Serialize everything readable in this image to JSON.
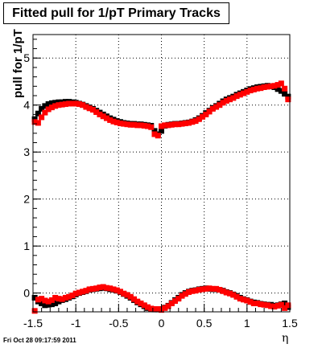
{
  "header": {
    "title": "Fitted pull for 1/pT  Primary Tracks",
    "timestamp": "Fri Oct 28 09:17:59 2011"
  },
  "chart_data": {
    "type": "scatter",
    "title": "Fitted pull for 1/pT  Primary Tracks",
    "xlabel": "η",
    "ylabel": "pull for 1/pT",
    "xlim": [
      -1.5,
      1.5
    ],
    "ylim": [
      -0.4,
      5.5
    ],
    "xticks": [
      "-1.5",
      "-1",
      "-0.5",
      "0",
      "0.5",
      "1",
      "1.5"
    ],
    "yticks": [
      "0",
      "1",
      "2",
      "3",
      "4",
      "5"
    ],
    "grid": true,
    "colors": {
      "black_series": "#000000",
      "red_series": "#ff0000"
    },
    "series": [
      {
        "marker": "square",
        "color": "#000000",
        "x": [
          -1.48,
          -1.44,
          -1.4,
          -1.36,
          -1.32,
          -1.28,
          -1.24,
          -1.2,
          -1.16,
          -1.12,
          -1.08,
          -1.04,
          -1.0,
          -0.96,
          -0.92,
          -0.88,
          -0.84,
          -0.8,
          -0.76,
          -0.72,
          -0.68,
          -0.64,
          -0.6,
          -0.56,
          -0.52,
          -0.48,
          -0.44,
          -0.4,
          -0.36,
          -0.32,
          -0.28,
          -0.24,
          -0.2,
          -0.16,
          -0.12,
          -0.08,
          -0.04,
          0.0,
          0.04,
          0.08,
          0.12,
          0.16,
          0.2,
          0.24,
          0.28,
          0.32,
          0.36,
          0.4,
          0.44,
          0.48,
          0.52,
          0.56,
          0.6,
          0.64,
          0.68,
          0.72,
          0.76,
          0.8,
          0.84,
          0.88,
          0.92,
          0.96,
          1.0,
          1.04,
          1.08,
          1.12,
          1.16,
          1.2,
          1.24,
          1.28,
          1.32,
          1.36,
          1.4,
          1.44,
          1.48,
          -1.48,
          -1.44,
          -1.4,
          -1.36,
          -1.32,
          -1.28,
          -1.24,
          -1.2,
          -1.16,
          -1.12,
          -1.08,
          -1.04,
          -1.0,
          -0.96,
          -0.92,
          -0.88,
          -0.84,
          -0.8,
          -0.76,
          -0.72,
          -0.68,
          -0.64,
          -0.6,
          -0.56,
          -0.52,
          -0.48,
          -0.44,
          -0.4,
          -0.36,
          -0.32,
          -0.28,
          -0.24,
          -0.2,
          -0.16,
          -0.12,
          -0.08,
          -0.04,
          0.0,
          0.04,
          0.08,
          0.12,
          0.16,
          0.2,
          0.24,
          0.28,
          0.32,
          0.36,
          0.4,
          0.44,
          0.48,
          0.52,
          0.56,
          0.6,
          0.64,
          0.68,
          0.72,
          0.76,
          0.8,
          0.84,
          0.88,
          0.92,
          0.96,
          1.0,
          1.04,
          1.08,
          1.12,
          1.16,
          1.2,
          1.24,
          1.28,
          1.32,
          1.36,
          1.4,
          1.44,
          1.48
        ],
        "y": [
          -0.1,
          -0.18,
          -0.22,
          -0.26,
          -0.25,
          -0.24,
          -0.22,
          -0.18,
          -0.15,
          -0.13,
          -0.1,
          -0.07,
          -0.03,
          0.0,
          0.02,
          0.04,
          0.07,
          0.08,
          0.09,
          0.1,
          0.11,
          0.1,
          0.08,
          0.07,
          0.05,
          0.02,
          -0.02,
          -0.06,
          -0.1,
          -0.15,
          -0.2,
          -0.24,
          -0.28,
          -0.32,
          -0.34,
          -0.35,
          -0.35,
          -0.34,
          -0.31,
          -0.27,
          -0.21,
          -0.15,
          -0.1,
          -0.04,
          0.0,
          0.03,
          0.05,
          0.06,
          0.08,
          0.09,
          0.1,
          0.09,
          0.08,
          0.08,
          0.07,
          0.05,
          0.02,
          0.0,
          -0.03,
          -0.06,
          -0.1,
          -0.13,
          -0.15,
          -0.18,
          -0.2,
          -0.21,
          -0.23,
          -0.24,
          -0.25,
          -0.25,
          -0.27,
          -0.26,
          -0.24,
          -0.22,
          -0.3,
          3.7,
          3.82,
          3.92,
          3.98,
          4.02,
          4.04,
          4.05,
          4.06,
          4.06,
          4.07,
          4.07,
          4.06,
          4.05,
          4.03,
          4.01,
          3.98,
          3.95,
          3.92,
          3.88,
          3.84,
          3.8,
          3.76,
          3.72,
          3.69,
          3.66,
          3.64,
          3.62,
          3.61,
          3.6,
          3.6,
          3.59,
          3.59,
          3.58,
          3.57,
          3.56,
          3.45,
          3.38,
          3.45,
          3.56,
          3.58,
          3.59,
          3.6,
          3.6,
          3.61,
          3.62,
          3.63,
          3.65,
          3.68,
          3.72,
          3.77,
          3.83,
          3.88,
          3.94,
          3.98,
          4.03,
          4.08,
          4.12,
          4.15,
          4.18,
          4.22,
          4.25,
          4.28,
          4.31,
          4.34,
          4.36,
          4.38,
          4.39,
          4.4,
          4.41,
          4.4,
          4.38,
          4.34,
          4.3,
          4.24,
          4.18
        ]
      },
      {
        "marker": "square",
        "color": "#ff0000",
        "x": [
          -1.48,
          -1.44,
          -1.4,
          -1.36,
          -1.32,
          -1.28,
          -1.24,
          -1.2,
          -1.16,
          -1.12,
          -1.08,
          -1.04,
          -1.0,
          -0.96,
          -0.92,
          -0.88,
          -0.84,
          -0.8,
          -0.76,
          -0.72,
          -0.68,
          -0.64,
          -0.6,
          -0.56,
          -0.52,
          -0.48,
          -0.44,
          -0.4,
          -0.36,
          -0.32,
          -0.28,
          -0.24,
          -0.2,
          -0.16,
          -0.12,
          -0.08,
          -0.04,
          0.0,
          0.04,
          0.08,
          0.12,
          0.16,
          0.2,
          0.24,
          0.28,
          0.32,
          0.36,
          0.4,
          0.44,
          0.48,
          0.52,
          0.56,
          0.6,
          0.64,
          0.68,
          0.72,
          0.76,
          0.8,
          0.84,
          0.88,
          0.92,
          0.96,
          1.0,
          1.04,
          1.08,
          1.12,
          1.16,
          1.2,
          1.24,
          1.28,
          1.32,
          1.36,
          1.4,
          1.44,
          1.48,
          -1.48,
          -1.44,
          -1.4,
          -1.36,
          -1.32,
          -1.28,
          -1.24,
          -1.2,
          -1.16,
          -1.12,
          -1.08,
          -1.04,
          -1.0,
          -0.96,
          -0.92,
          -0.88,
          -0.84,
          -0.8,
          -0.76,
          -0.72,
          -0.68,
          -0.64,
          -0.6,
          -0.56,
          -0.52,
          -0.48,
          -0.44,
          -0.4,
          -0.36,
          -0.32,
          -0.28,
          -0.24,
          -0.2,
          -0.16,
          -0.12,
          -0.08,
          -0.04,
          0.0,
          0.04,
          0.08,
          0.12,
          0.16,
          0.2,
          0.24,
          0.28,
          0.32,
          0.36,
          0.4,
          0.44,
          0.48,
          0.52,
          0.56,
          0.6,
          0.64,
          0.68,
          0.72,
          0.76,
          0.8,
          0.84,
          0.88,
          0.92,
          0.96,
          1.0,
          1.04,
          1.08,
          1.12,
          1.16,
          1.2,
          1.24,
          1.28,
          1.32,
          1.36,
          1.4,
          1.44,
          1.48
        ],
        "y": [
          -0.38,
          -0.14,
          -0.12,
          -0.16,
          -0.18,
          -0.15,
          -0.1,
          -0.12,
          -0.13,
          -0.1,
          -0.08,
          -0.05,
          -0.01,
          0.01,
          0.03,
          0.05,
          0.08,
          0.09,
          0.1,
          0.12,
          0.13,
          0.11,
          0.1,
          0.08,
          0.06,
          0.03,
          -0.01,
          -0.04,
          -0.08,
          -0.13,
          -0.18,
          -0.22,
          -0.26,
          -0.3,
          -0.33,
          -0.34,
          -0.34,
          -0.36,
          -0.32,
          -0.28,
          -0.22,
          -0.17,
          -0.12,
          -0.06,
          -0.02,
          0.02,
          0.04,
          0.05,
          0.07,
          0.08,
          0.09,
          0.1,
          0.09,
          0.09,
          0.07,
          0.04,
          0.01,
          -0.01,
          -0.04,
          -0.08,
          -0.12,
          -0.14,
          -0.16,
          -0.19,
          -0.22,
          -0.22,
          -0.24,
          -0.25,
          -0.26,
          -0.28,
          -0.29,
          -0.27,
          -0.25,
          -0.32,
          -0.26,
          3.64,
          3.62,
          3.74,
          3.84,
          3.91,
          3.95,
          3.98,
          4.0,
          4.01,
          4.02,
          4.03,
          4.03,
          4.03,
          4.02,
          4.0,
          3.96,
          3.93,
          3.9,
          3.85,
          3.8,
          3.76,
          3.72,
          3.68,
          3.65,
          3.63,
          3.61,
          3.6,
          3.59,
          3.58,
          3.58,
          3.57,
          3.57,
          3.56,
          3.55,
          3.53,
          3.38,
          3.35,
          3.55,
          3.57,
          3.57,
          3.58,
          3.59,
          3.59,
          3.6,
          3.61,
          3.62,
          3.64,
          3.66,
          3.7,
          3.75,
          3.8,
          3.86,
          3.92,
          3.96,
          4.0,
          4.05,
          4.09,
          4.12,
          4.15,
          4.19,
          4.22,
          4.25,
          4.28,
          4.31,
          4.33,
          4.35,
          4.36,
          4.38,
          4.39,
          4.4,
          4.41,
          4.43,
          4.46,
          4.35,
          4.12
        ]
      }
    ]
  }
}
